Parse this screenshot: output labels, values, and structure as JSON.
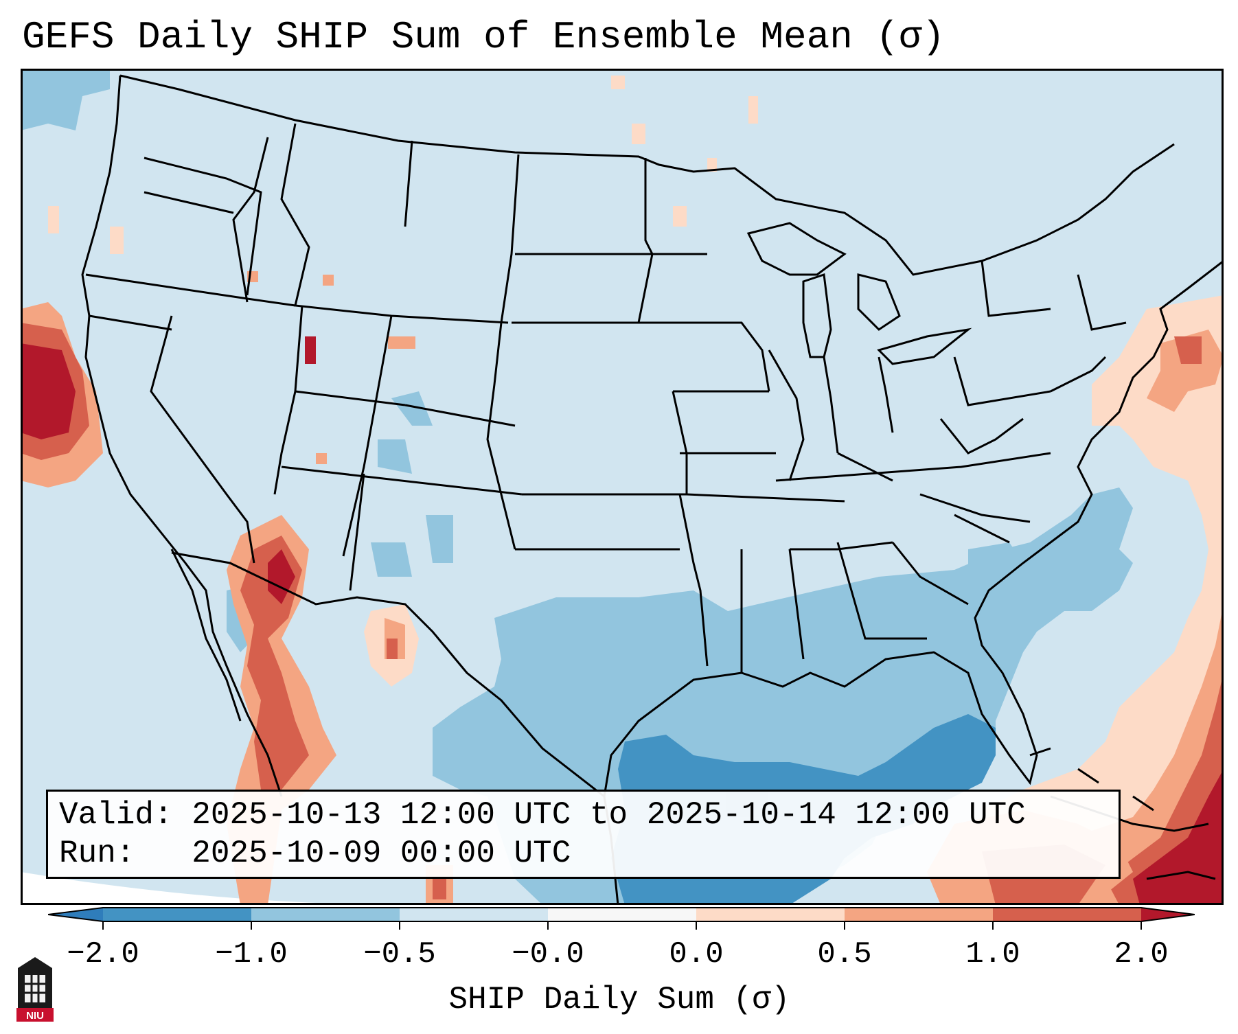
{
  "title": "GEFS Daily SHIP Sum of Ensemble Mean (σ)",
  "info": {
    "valid_label": "Valid:",
    "valid_value": "2025-10-13 12:00 UTC to 2025-10-14 12:00 UTC",
    "run_label": "Run:",
    "run_value": "2025-10-09 00:00 UTC"
  },
  "colorbar": {
    "label": "SHIP Daily Sum (σ)",
    "tick_labels": [
      "−2.0",
      "−1.0",
      "−0.5",
      "−0.0",
      "0.0",
      "0.5",
      "1.0",
      "2.0"
    ],
    "bins": [
      {
        "range": "< -2.0",
        "color": "#2f7dbb"
      },
      {
        "range": "-2.0 to -1.0",
        "color": "#4393c3"
      },
      {
        "range": "-1.0 to -0.5",
        "color": "#92c5de"
      },
      {
        "range": "-0.5 to -0.0",
        "color": "#d1e5f0"
      },
      {
        "range": "-0.0 to 0.0",
        "color": "#f7f7f7"
      },
      {
        "range": "0.0 to 0.5",
        "color": "#fddbc7"
      },
      {
        "range": "0.5 to 1.0",
        "color": "#f4a582"
      },
      {
        "range": "1.0 to 2.0",
        "color": "#d6604d"
      },
      {
        "range": "> 2.0",
        "color": "#b2182b"
      }
    ],
    "extend": "both"
  },
  "map": {
    "region": "CONUS",
    "projection": "Lambert conformal",
    "background_color": "#d1e5f0",
    "features": [
      "coastlines",
      "state borders",
      "country borders"
    ],
    "notable_anomalies": [
      {
        "area": "Northern California coast / Pacific",
        "sign": "positive",
        "max": "> 2.0"
      },
      {
        "area": "Gulf of California / Baja California",
        "sign": "positive",
        "max": "> 2.0"
      },
      {
        "area": "Western Atlantic / Caribbean",
        "sign": "positive",
        "max": "> 2.0"
      },
      {
        "area": "Gulf of Mexico",
        "sign": "negative",
        "max": "< -1.0"
      },
      {
        "area": "Southeast US / Atlantic coast",
        "sign": "negative",
        "max": "-1.0 to -0.5"
      }
    ]
  },
  "logo": {
    "text": "NIU"
  }
}
